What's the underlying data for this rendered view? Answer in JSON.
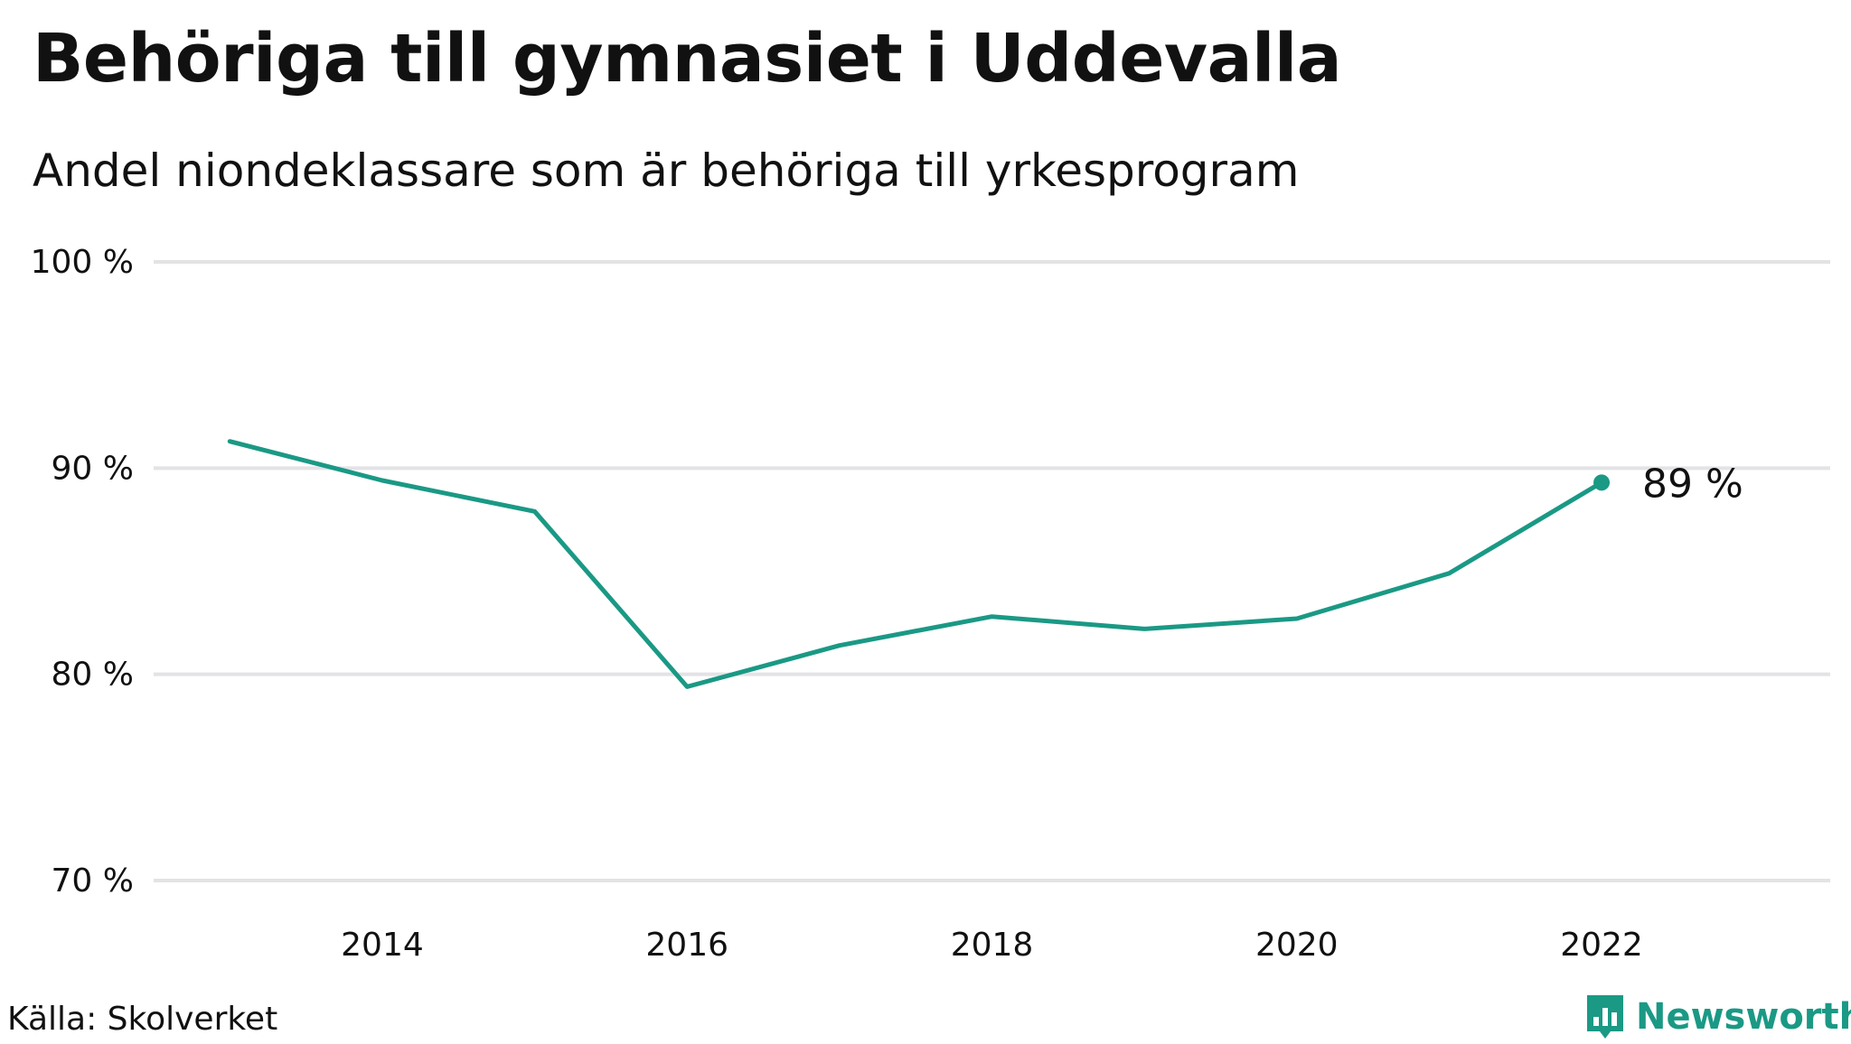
{
  "title": "Behöriga till gymnasiet i Uddevalla",
  "subtitle": "Andel niondeklassare som är behöriga till yrkesprogram",
  "source": "Källa: Skolverket",
  "brand": {
    "name": "Newsworthy",
    "icon": "newsworthy-logo-icon"
  },
  "colors": {
    "line": "#1a9985",
    "grid": "#e3e3e6",
    "text": "#111111"
  },
  "chart_data": {
    "type": "line",
    "title": "Behöriga till gymnasiet i Uddevalla",
    "subtitle": "Andel niondeklassare som är behöriga till yrkesprogram",
    "xlabel": "",
    "ylabel": "",
    "x": [
      2013,
      2014,
      2015,
      2016,
      2017,
      2018,
      2019,
      2020,
      2021,
      2022
    ],
    "series": [
      {
        "name": "Uddevalla",
        "values": [
          91.3,
          89.4,
          87.9,
          79.4,
          81.4,
          82.8,
          82.2,
          82.7,
          84.9,
          89.3
        ]
      }
    ],
    "ylim": [
      70,
      100
    ],
    "xlim": [
      2012.5,
      2023.5
    ],
    "yticks": [
      70,
      80,
      90,
      100
    ],
    "ytick_labels": [
      "70 %",
      "80 %",
      "90 %",
      "100 %"
    ],
    "xticks": [
      2014,
      2016,
      2018,
      2020,
      2022
    ],
    "xtick_labels": [
      "2014",
      "2016",
      "2018",
      "2020",
      "2022"
    ],
    "end_label": "89  %",
    "grid": true,
    "legend": "none"
  }
}
